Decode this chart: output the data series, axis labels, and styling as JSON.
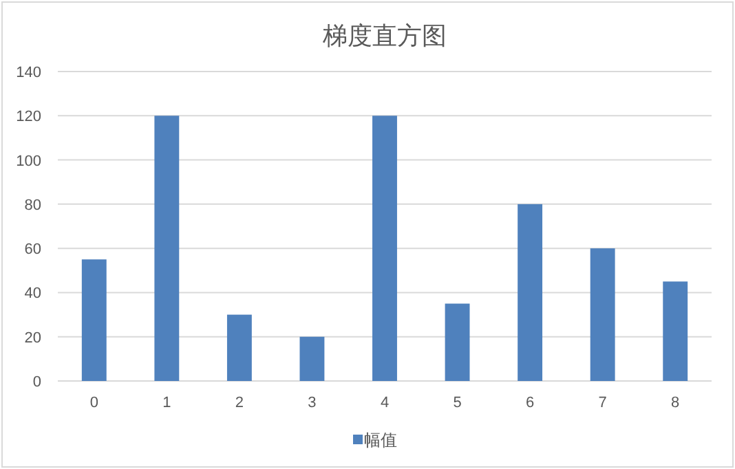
{
  "chart_data": {
    "type": "bar",
    "title": "梯度直方图",
    "categories": [
      "0",
      "1",
      "2",
      "3",
      "4",
      "5",
      "6",
      "7",
      "8"
    ],
    "series": [
      {
        "name": "幅值",
        "color": "#4f81bd",
        "values": [
          55,
          120,
          30,
          20,
          120,
          35,
          80,
          60,
          45
        ]
      }
    ],
    "ylim": [
      0,
      140
    ],
    "yticks": [
      0,
      20,
      40,
      60,
      80,
      100,
      120,
      140
    ],
    "grid": "y",
    "legend": "bottom"
  }
}
